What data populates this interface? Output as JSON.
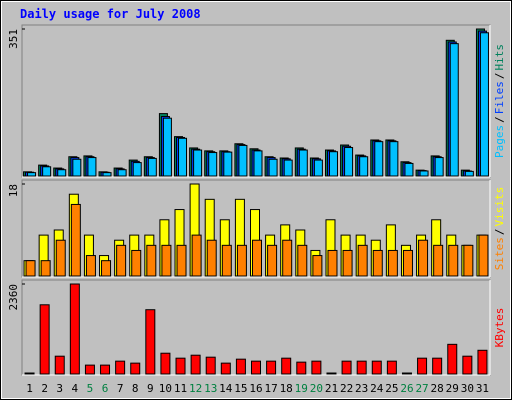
{
  "chart_data": [
    {
      "type": "bar",
      "title": "Daily usage for July 2008",
      "ylim": [
        0,
        351
      ],
      "yticks": [
        351
      ],
      "legend_separator": "/",
      "series": [
        {
          "name": "Hits",
          "color": "#00805c",
          "values": [
            10,
            26,
            19,
            46,
            48,
            10,
            19,
            38,
            46,
            149,
            94,
            67,
            60,
            60,
            77,
            65,
            46,
            43,
            67,
            43,
            62,
            74,
            50,
            86,
            86,
            34,
            14,
            48,
            324,
            14,
            351
          ]
        },
        {
          "name": "Files",
          "color": "#0040ff",
          "values": [
            9,
            24,
            17,
            44,
            46,
            9,
            17,
            35,
            44,
            142,
            92,
            64,
            58,
            58,
            75,
            62,
            44,
            41,
            64,
            41,
            60,
            71,
            48,
            84,
            84,
            32,
            13,
            46,
            320,
            12,
            346
          ]
        },
        {
          "name": "Pages",
          "color": "#00c0ff",
          "values": [
            8,
            22,
            15,
            40,
            44,
            8,
            15,
            32,
            42,
            138,
            90,
            62,
            56,
            57,
            73,
            60,
            40,
            38,
            62,
            38,
            58,
            68,
            46,
            82,
            82,
            30,
            12,
            44,
            316,
            11,
            342
          ]
        }
      ]
    },
    {
      "type": "bar",
      "ylim": [
        0,
        18
      ],
      "yticks": [
        18
      ],
      "legend_separator": "/",
      "series": [
        {
          "name": "Visits",
          "color": "#ffff00",
          "values": [
            3,
            8,
            9,
            16,
            8,
            4,
            7,
            8,
            8,
            11,
            13,
            18,
            15,
            11,
            15,
            13,
            8,
            10,
            9,
            5,
            11,
            8,
            8,
            7,
            10,
            6,
            8,
            11,
            8,
            6,
            8
          ]
        },
        {
          "name": "Sites",
          "color": "#ff8000",
          "values": [
            3,
            3,
            7,
            14,
            4,
            3,
            6,
            5,
            6,
            6,
            6,
            8,
            7,
            6,
            6,
            7,
            6,
            7,
            6,
            4,
            5,
            5,
            6,
            5,
            5,
            5,
            7,
            6,
            6,
            6,
            8
          ]
        }
      ]
    },
    {
      "type": "bar",
      "ylim": [
        0,
        2360
      ],
      "yticks": [
        2360
      ],
      "categories": [
        "1",
        "2",
        "3",
        "4",
        "5",
        "6",
        "7",
        "8",
        "9",
        "10",
        "11",
        "12",
        "13",
        "14",
        "15",
        "16",
        "17",
        "18",
        "19",
        "20",
        "21",
        "22",
        "23",
        "24",
        "25",
        "26",
        "27",
        "28",
        "29",
        "30",
        "31"
      ],
      "category_colors": [
        "#000",
        "#000",
        "#000",
        "#000",
        "#008040",
        "#008040",
        "#000",
        "#000",
        "#000",
        "#000",
        "#000",
        "#008040",
        "#008040",
        "#000",
        "#000",
        "#000",
        "#000",
        "#000",
        "#008040",
        "#008040",
        "#000",
        "#000",
        "#000",
        "#000",
        "#000",
        "#008040",
        "#008040",
        "#000",
        "#000",
        "#000",
        "#000"
      ],
      "series": [
        {
          "name": "KBytes",
          "color": "#ff0000",
          "values": [
            26,
            1815,
            467,
            2360,
            233,
            233,
            337,
            285,
            1686,
            545,
            415,
            493,
            441,
            285,
            389,
            337,
            337,
            415,
            311,
            337,
            26,
            337,
            337,
            337,
            337,
            26,
            415,
            415,
            778,
            467,
            622
          ]
        }
      ]
    }
  ]
}
